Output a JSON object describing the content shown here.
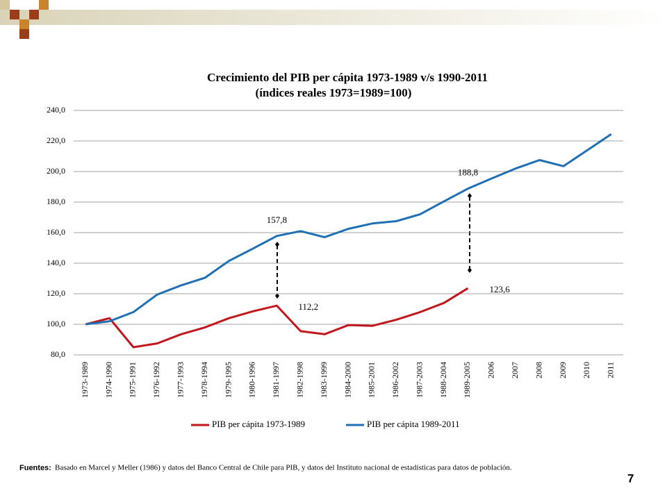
{
  "chart_data": {
    "type": "line",
    "title": "Crecimiento  del PIB per cápita 1973-1989 v/s 1990-2011",
    "subtitle": "(índices reales 1973=1989=100)",
    "categories": [
      "1973-1989",
      "1974-1990",
      "1975-1991",
      "1976-1992",
      "1977-1993",
      "1978-1994",
      "1979-1995",
      "1980-1996",
      "1981-1997",
      "1982-1998",
      "1983-1999",
      "1984-2000",
      "1985-2001",
      "1986-2002",
      "1987-2003",
      "1988-2004",
      "1989-2005",
      "2006",
      "2007",
      "2008",
      "2009",
      "2010",
      "2011"
    ],
    "series": [
      {
        "name": "PIB per cápita 1973-1989",
        "color": "#c0161c",
        "values": [
          100,
          104,
          85,
          87.5,
          93.5,
          98,
          104,
          108.5,
          112.2,
          95.5,
          93.5,
          99.5,
          99,
          103,
          108,
          114,
          123.6,
          null,
          null,
          null,
          null,
          null,
          null
        ],
        "value_labels": [
          null,
          null,
          null,
          null,
          null,
          null,
          null,
          null,
          "112,2",
          null,
          null,
          null,
          null,
          null,
          null,
          null,
          "123,6",
          null,
          null,
          null,
          null,
          null,
          null
        ]
      },
      {
        "name": "PIB per cápita 1989-2011",
        "color": "#1f6fb5",
        "values": [
          100,
          102,
          108,
          119.5,
          125.5,
          130.5,
          141.5,
          149.5,
          157.8,
          161,
          157,
          162.5,
          166,
          167.5,
          172,
          180.5,
          188.8,
          195.5,
          202,
          207.5,
          203.5,
          214,
          224.5
        ],
        "value_labels": [
          null,
          null,
          null,
          null,
          null,
          null,
          null,
          null,
          "157,8",
          null,
          null,
          null,
          null,
          null,
          null,
          null,
          "188,8",
          null,
          null,
          null,
          null,
          null,
          null
        ]
      }
    ],
    "ylim": [
      80,
      240
    ],
    "yticks": [
      {
        "value": 80,
        "label": "80,0"
      },
      {
        "value": 100,
        "label": "100,0"
      },
      {
        "value": 120,
        "label": "120,0"
      },
      {
        "value": 140,
        "label": "140,0"
      },
      {
        "value": 160,
        "label": "160,0"
      },
      {
        "value": 180,
        "label": "180,0"
      },
      {
        "value": 200,
        "label": "200,0"
      },
      {
        "value": 220,
        "label": "220,0"
      },
      {
        "value": 240,
        "label": "240,0"
      }
    ],
    "grid": true,
    "legend": "bottom"
  },
  "footer": {
    "label": "Fuentes:",
    "text": "Basado en Marcel y Meller (1986) y datos del Banco Central de Chile para PIB, y datos del Instituto nacional de estadísticas para datos de población."
  },
  "page_number": "7"
}
